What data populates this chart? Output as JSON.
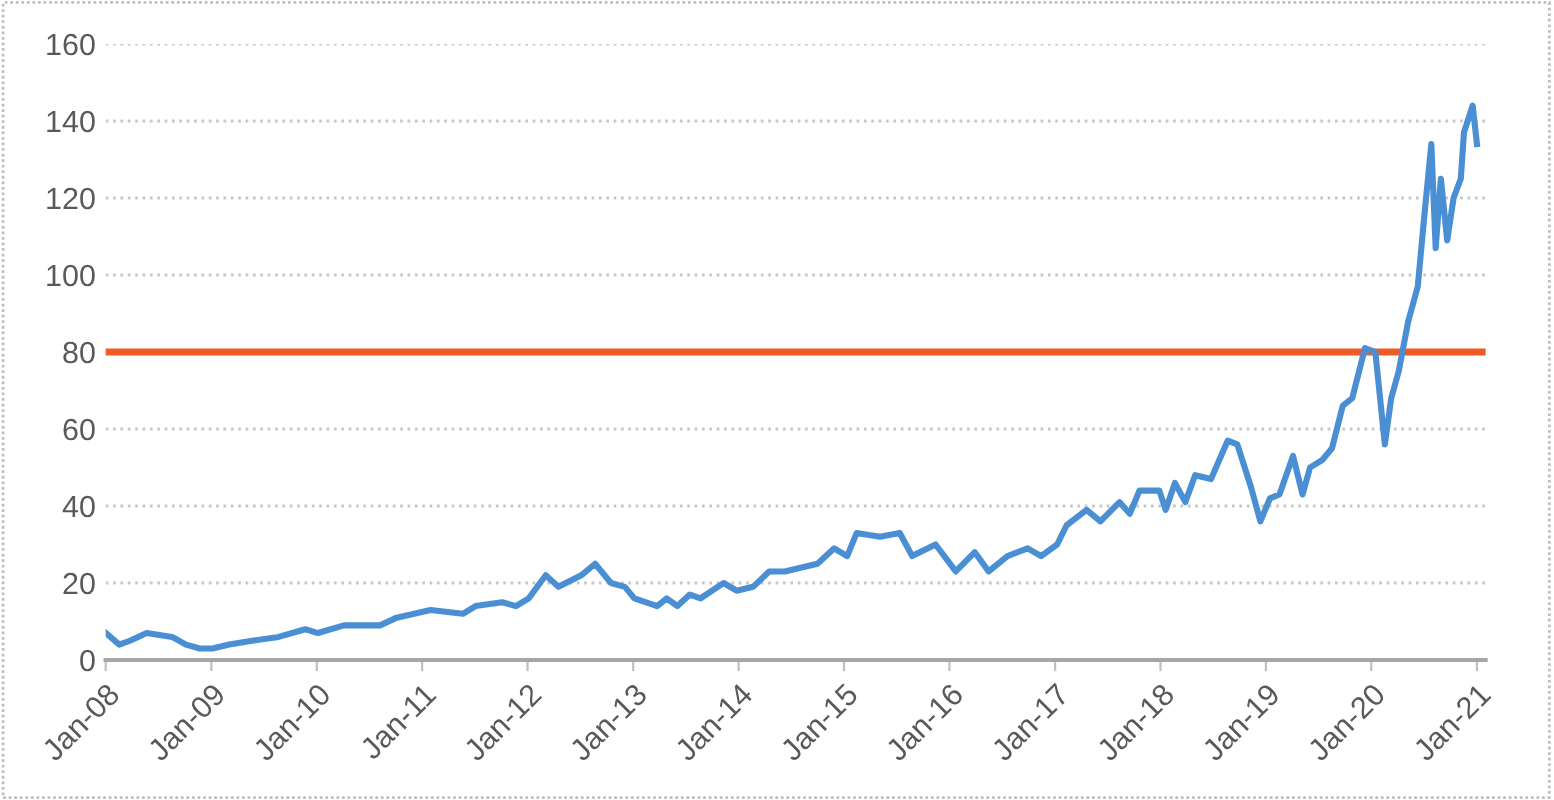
{
  "chart_data": {
    "type": "line",
    "x": [
      "2008-01-02",
      "2008-02-17",
      "2008-03-25",
      "2008-05-22",
      "2008-08-18",
      "2008-10-05",
      "2008-11-22",
      "2009-01-05",
      "2009-03-04",
      "2009-05-22",
      "2009-08-22",
      "2009-11-22",
      "2010-01-05",
      "2010-04-05",
      "2010-08-08",
      "2010-10-05",
      "2011-01-30",
      "2011-05-22",
      "2011-07-05",
      "2011-10-05",
      "2011-11-22",
      "2012-01-05",
      "2012-03-04",
      "2012-04-17",
      "2012-07-05",
      "2012-08-22",
      "2012-10-16",
      "2012-12-03",
      "2013-01-05",
      "2013-03-25",
      "2013-04-27",
      "2013-06-03",
      "2013-07-16",
      "2013-08-22",
      "2013-11-10",
      "2013-12-25",
      "2014-02-20",
      "2014-04-17",
      "2014-06-10",
      "2014-10-01",
      "2014-11-28",
      "2015-01-12",
      "2015-02-14",
      "2015-05-05",
      "2015-07-13",
      "2015-08-25",
      "2015-11-14",
      "2016-01-23",
      "2016-03-29",
      "2016-05-16",
      "2016-07-20",
      "2016-09-28",
      "2016-11-14",
      "2017-01-08",
      "2017-02-10",
      "2017-04-20",
      "2017-06-07",
      "2017-08-12",
      "2017-09-17",
      "2017-10-20",
      "2017-12-28",
      "2018-01-19",
      "2018-02-20",
      "2018-03-28",
      "2018-05-01",
      "2018-06-25",
      "2018-08-22",
      "2018-09-24",
      "2018-11-10",
      "2018-12-13",
      "2019-01-15",
      "2019-02-17",
      "2019-04-05",
      "2019-05-08",
      "2019-06-03",
      "2019-07-16",
      "2019-08-18",
      "2019-09-24",
      "2019-10-27",
      "2019-12-10",
      "2020-01-15",
      "2020-02-17",
      "2020-03-10",
      "2020-04-05",
      "2020-05-08",
      "2020-06-10",
      "2020-07-01",
      "2020-07-27",
      "2020-08-11",
      "2020-08-29",
      "2020-09-20",
      "2020-10-12",
      "2020-11-06",
      "2020-11-17",
      "2020-12-17",
      "2021-01-01"
    ],
    "series": [
      {
        "color": "#4a8fd4",
        "values": [
          7,
          4,
          5,
          7,
          6,
          4,
          3,
          3,
          4,
          5,
          6,
          8,
          7,
          9,
          9,
          11,
          13,
          12,
          14,
          15,
          14,
          16,
          22,
          19,
          22,
          25,
          20,
          19,
          16,
          14,
          16,
          14,
          17,
          16,
          20,
          18,
          19,
          23,
          23,
          25,
          29,
          27,
          33,
          32,
          33,
          27,
          30,
          23,
          28,
          23,
          27,
          29,
          27,
          30,
          35,
          39,
          36,
          41,
          38,
          44,
          44,
          39,
          46,
          41,
          48,
          47,
          57,
          56,
          45,
          36,
          42,
          43,
          53,
          43,
          50,
          52,
          55,
          66,
          68,
          81,
          80,
          56,
          68,
          75,
          88,
          97,
          114,
          134,
          107,
          125,
          109,
          120,
          125,
          137,
          144,
          134
        ]
      }
    ],
    "xlim": [
      "2008-01-01",
      "2021-01-31"
    ],
    "xticks": [
      {
        "value": "2008-01-01",
        "label": "Jan-08"
      },
      {
        "value": "2009-01-01",
        "label": "Jan-09"
      },
      {
        "value": "2010-01-01",
        "label": "Jan-10"
      },
      {
        "value": "2011-01-01",
        "label": "Jan-11"
      },
      {
        "value": "2012-01-01",
        "label": "Jan-12"
      },
      {
        "value": "2013-01-01",
        "label": "Jan-13"
      },
      {
        "value": "2014-01-01",
        "label": "Jan-14"
      },
      {
        "value": "2015-01-01",
        "label": "Jan-15"
      },
      {
        "value": "2016-01-01",
        "label": "Jan-16"
      },
      {
        "value": "2017-01-01",
        "label": "Jan-17"
      },
      {
        "value": "2018-01-01",
        "label": "Jan-18"
      },
      {
        "value": "2019-01-01",
        "label": "Jan-19"
      },
      {
        "value": "2020-01-01",
        "label": "Jan-20"
      },
      {
        "value": "2021-01-01",
        "label": "Jan-21"
      }
    ],
    "ylim": [
      0,
      160
    ],
    "yticks": [
      0,
      20,
      40,
      60,
      80,
      100,
      120,
      140,
      160
    ],
    "ref_lines": [
      {
        "axis": "y",
        "value": 80,
        "color": "#f05a24"
      }
    ],
    "grid": "y",
    "legend": false,
    "marker": "none",
    "line_style": "solid"
  }
}
